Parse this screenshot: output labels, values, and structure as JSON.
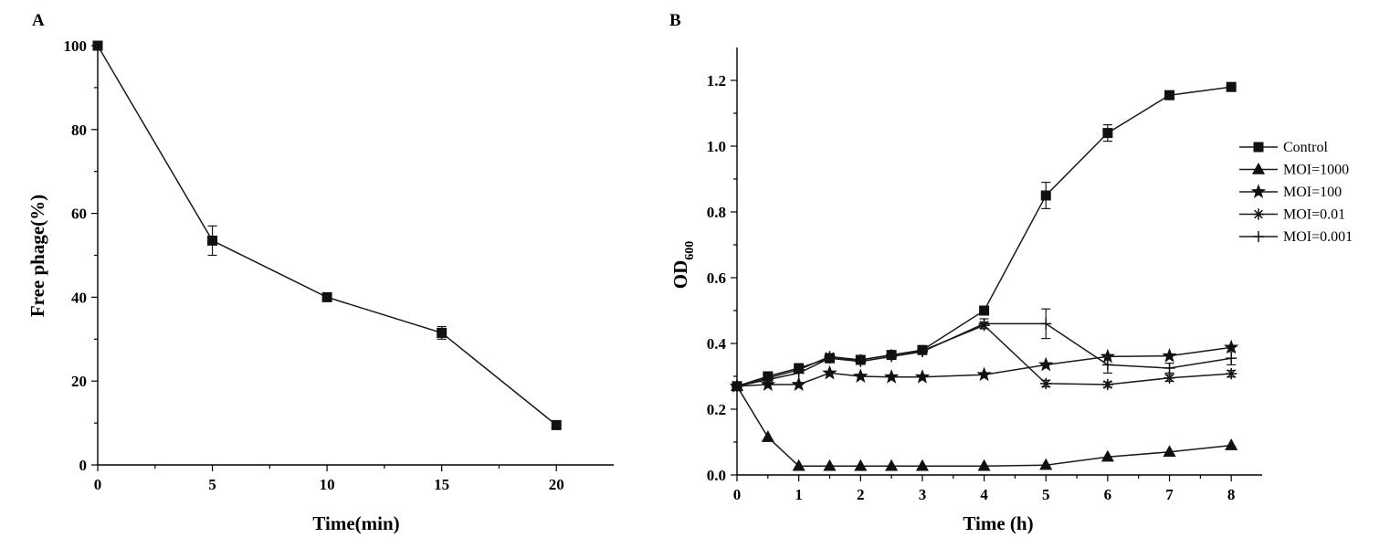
{
  "chart_data": [
    {
      "type": "line",
      "panel_label": "A",
      "title": "",
      "xlabel": "Time(min)",
      "ylabel": "Free phage(%)",
      "xlim": [
        0,
        22.5
      ],
      "ylim": [
        0,
        100
      ],
      "x_ticks": [
        0,
        5,
        10,
        15,
        20
      ],
      "y_ticks": [
        0,
        20,
        40,
        60,
        80,
        100
      ],
      "x_tick_labels": [
        "0",
        "5",
        "10",
        "15",
        "20"
      ],
      "y_tick_labels": [
        "0",
        "20",
        "40",
        "60",
        "80",
        "100"
      ],
      "grid": false,
      "series": [
        {
          "name": "Free phage",
          "marker": "square",
          "x": [
            0,
            5,
            10,
            15,
            20
          ],
          "values": [
            100,
            53.5,
            40,
            31.5,
            9.5
          ],
          "errors": [
            0,
            3.5,
            0.6,
            1.5,
            0.6
          ]
        }
      ]
    },
    {
      "type": "line",
      "panel_label": "B",
      "title": "",
      "xlabel": "Time (h)",
      "ylabel_main": "OD",
      "ylabel_sub": "600",
      "xlim": [
        0,
        8.5
      ],
      "ylim": [
        0,
        1.3
      ],
      "x_ticks": [
        0,
        1,
        2,
        3,
        4,
        5,
        6,
        7,
        8
      ],
      "y_ticks": [
        0,
        0.2,
        0.4,
        0.6,
        0.8,
        1.0,
        1.2
      ],
      "x_tick_labels": [
        "0",
        "1",
        "2",
        "3",
        "4",
        "5",
        "6",
        "7",
        "8"
      ],
      "y_tick_labels": [
        "0.0",
        "0.2",
        "0.4",
        "0.6",
        "0.8",
        "1.0",
        "1.2"
      ],
      "grid": false,
      "legend_position": "right",
      "x": [
        0,
        0.5,
        1,
        1.5,
        2,
        2.5,
        3,
        4,
        5,
        6,
        7,
        8
      ],
      "series": [
        {
          "name": "Control",
          "marker": "square",
          "values": [
            0.27,
            0.3,
            0.325,
            0.355,
            0.35,
            0.365,
            0.38,
            0.5,
            0.85,
            1.04,
            1.155,
            1.18
          ],
          "errors": [
            0,
            0,
            0,
            0,
            0,
            0,
            0,
            0.01,
            0.04,
            0.025,
            0.01,
            0.005
          ]
        },
        {
          "name": "MOI=1000",
          "marker": "triangle",
          "values": [
            0.27,
            0.115,
            0.027,
            0.027,
            0.027,
            0.027,
            0.027,
            0.027,
            0.03,
            0.055,
            0.07,
            0.09
          ],
          "errors": [
            0,
            0,
            0,
            0,
            0,
            0,
            0,
            0,
            0,
            0,
            0,
            0
          ]
        },
        {
          "name": "MOI=100",
          "marker": "star",
          "values": [
            0.27,
            0.275,
            0.275,
            0.31,
            0.3,
            0.298,
            0.298,
            0.305,
            0.335,
            0.36,
            0.362,
            0.388
          ],
          "errors": [
            0,
            0,
            0,
            0,
            0,
            0,
            0,
            0,
            0,
            0,
            0,
            0
          ]
        },
        {
          "name": "MOI=0.01",
          "marker": "asterisk",
          "values": [
            0.27,
            0.295,
            0.32,
            0.36,
            0.35,
            0.365,
            0.378,
            0.455,
            0.278,
            0.275,
            0.295,
            0.308
          ],
          "errors": [
            0,
            0,
            0,
            0,
            0,
            0,
            0,
            0.01,
            0.01,
            0.008,
            0.01,
            0.01
          ]
        },
        {
          "name": "MOI=0.001",
          "marker": "plus",
          "values": [
            0.27,
            0.29,
            0.31,
            0.355,
            0.345,
            0.36,
            0.375,
            0.46,
            0.46,
            0.335,
            0.325,
            0.355
          ],
          "errors": [
            0,
            0,
            0,
            0,
            0,
            0,
            0,
            0.015,
            0.045,
            0.025,
            0.015,
            0.02
          ]
        }
      ]
    }
  ]
}
